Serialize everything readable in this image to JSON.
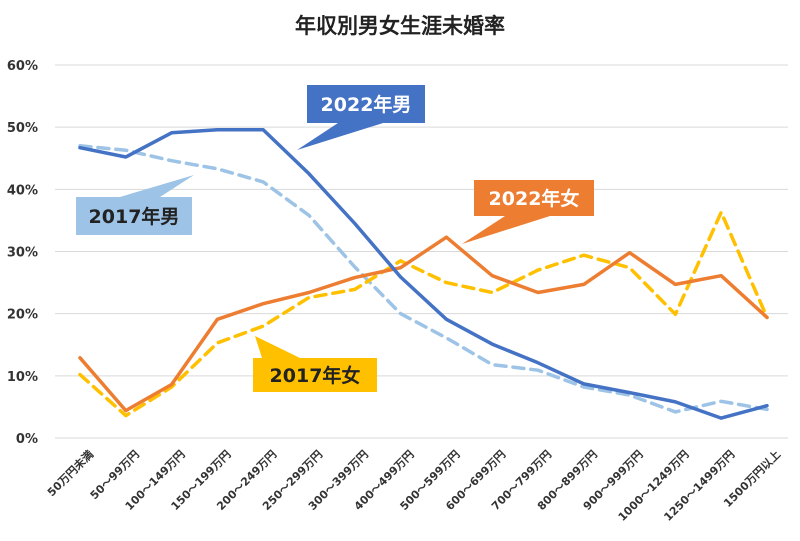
{
  "chart_data": {
    "type": "line",
    "title": "年収別男女生涯未婚率",
    "categories": [
      "50万円未満",
      "50～99万円",
      "100～149万円",
      "150～199万円",
      "200～249万円",
      "250～299万円",
      "300～399万円",
      "400～499万円",
      "500～599万円",
      "600～699万円",
      "700～799万円",
      "800～899万円",
      "900～999万円",
      "1000～1249万円",
      "1250～1499万円",
      "1500万円以上"
    ],
    "y_ticks": [
      "0%",
      "10%",
      "20%",
      "30%",
      "40%",
      "50%",
      "60%"
    ],
    "ylim": [
      0,
      60
    ],
    "grid": true,
    "series": [
      {
        "name": "2022年男",
        "color": "#4472C4",
        "style": "solid",
        "values": [
          46.7,
          45.2,
          49.1,
          49.6,
          49.6,
          42.5,
          34.5,
          25.9,
          19.1,
          15.1,
          12.1,
          8.7,
          7.3,
          5.8,
          3.2,
          5.2
        ]
      },
      {
        "name": "2017年男",
        "color": "#9DC3E6",
        "style": "dashed",
        "values": [
          47.0,
          46.3,
          44.6,
          43.3,
          41.2,
          35.8,
          27.5,
          20.0,
          16.1,
          11.8,
          10.9,
          8.2,
          6.9,
          4.2,
          5.9,
          4.6
        ]
      },
      {
        "name": "2022年女",
        "color": "#ED7D31",
        "style": "solid",
        "values": [
          12.9,
          4.4,
          8.6,
          19.1,
          21.6,
          23.4,
          25.8,
          27.4,
          32.3,
          26.1,
          23.4,
          24.7,
          29.8,
          24.7,
          26.1,
          19.4
        ]
      },
      {
        "name": "2017年女",
        "color": "#FFC000",
        "style": "dashed",
        "values": [
          10.2,
          3.6,
          8.2,
          15.3,
          18.0,
          22.6,
          23.9,
          28.5,
          25.0,
          23.4,
          27.0,
          29.4,
          27.4,
          19.9,
          36.3,
          19.4
        ]
      }
    ],
    "legend": "callouts"
  }
}
